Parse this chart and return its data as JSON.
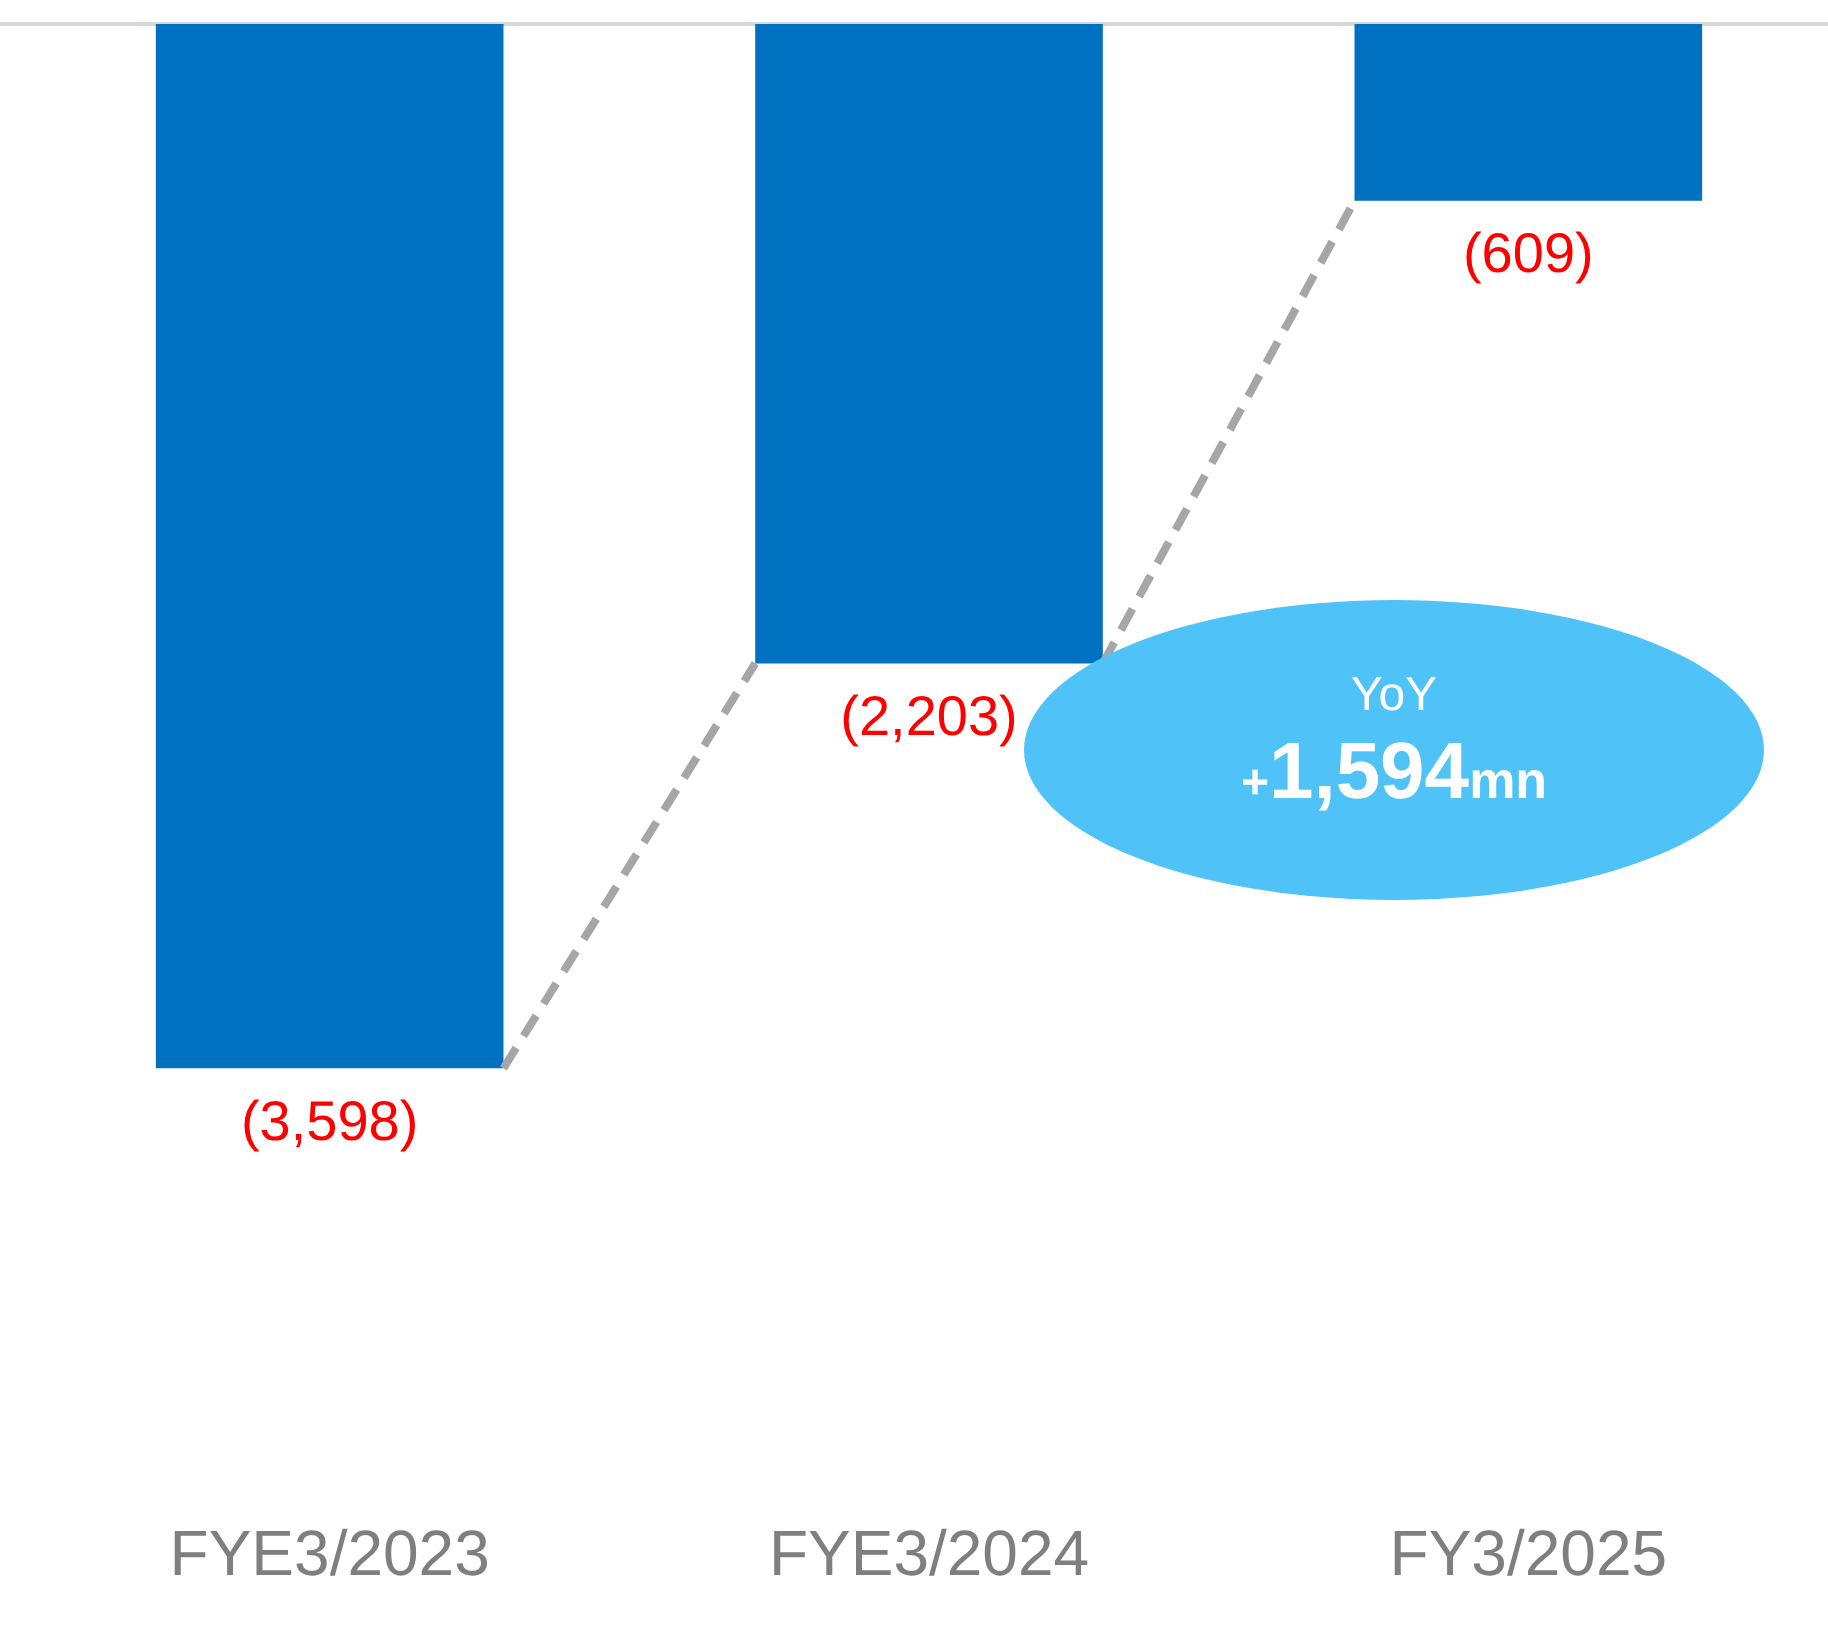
{
  "chart_data": {
    "type": "bar",
    "categories": [
      "FYE3/2023",
      "FYE3/2024",
      "FY3/2025"
    ],
    "values": [
      -3598,
      -2203,
      -609
    ],
    "color": "#0070c0",
    "value_labels": [
      "(3,598)",
      "(2,203)",
      "(609)"
    ],
    "tick_labels": "x",
    "grid": false,
    "legend": false,
    "ref_lines": [
      {
        "axis": "y",
        "value": 0,
        "color": "#d9d9d9"
      }
    ],
    "annotations": [
      "YoY",
      "+1,594mn"
    ]
  }
}
